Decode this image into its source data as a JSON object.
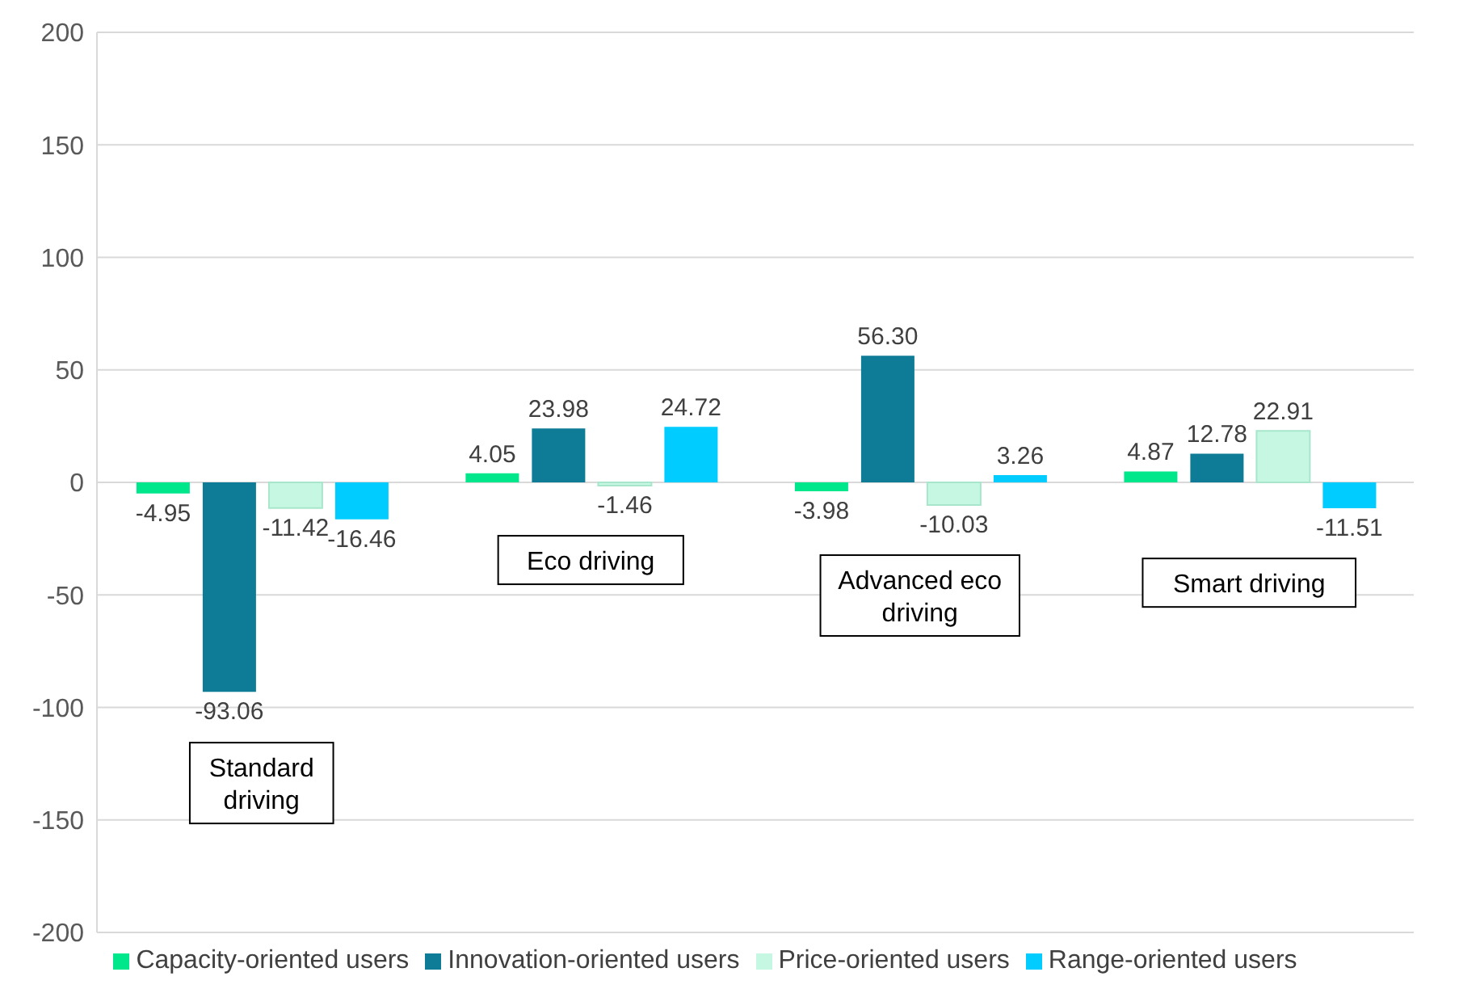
{
  "chart_data": {
    "type": "bar",
    "categories": [
      "Standard driving",
      "Eco driving",
      "Advanced eco driving",
      "Smart driving"
    ],
    "series": [
      {
        "name": "Capacity-oriented users",
        "color": "#00e68a",
        "values": [
          -4.95,
          4.05,
          -3.98,
          4.87
        ],
        "value_labels": [
          "-4.95",
          "4.05",
          "-3.98",
          "4.87"
        ]
      },
      {
        "name": "Innovation-oriented users",
        "color": "#0e7c96",
        "values": [
          -93.06,
          23.98,
          56.3,
          12.78
        ],
        "value_labels": [
          "-93.06",
          "23.98",
          "56.30",
          "12.78"
        ]
      },
      {
        "name": "Price-oriented users",
        "color": "#c6f7e2",
        "values": [
          -11.42,
          -1.46,
          -10.03,
          22.91
        ],
        "value_labels": [
          "-11.42",
          "-1.46",
          "-10.03",
          "22.91"
        ]
      },
      {
        "name": "Range-oriented users",
        "color": "#00ccff",
        "values": [
          -16.46,
          24.72,
          3.26,
          -11.51
        ],
        "value_labels": [
          "-16.46",
          "24.72",
          "3.26",
          "-11.51"
        ]
      }
    ],
    "ylim": [
      -200,
      200
    ],
    "yticks": [
      -200,
      -150,
      -100,
      -50,
      0,
      50,
      100,
      150,
      200
    ],
    "grid": "y",
    "legend": "bottom"
  }
}
